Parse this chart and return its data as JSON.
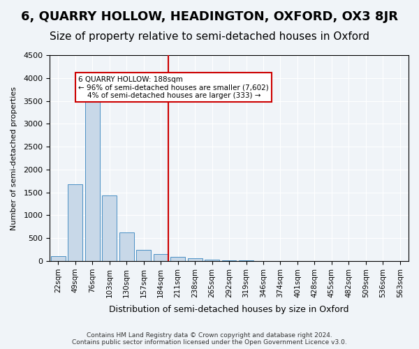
{
  "title1": "6, QUARRY HOLLOW, HEADINGTON, OXFORD, OX3 8JR",
  "title2": "Size of property relative to semi-detached houses in Oxford",
  "xlabel": "Distribution of semi-detached houses by size in Oxford",
  "ylabel": "Number of semi-detached properties",
  "categories": [
    "22sqm",
    "49sqm",
    "76sqm",
    "103sqm",
    "130sqm",
    "157sqm",
    "184sqm",
    "211sqm",
    "238sqm",
    "265sqm",
    "292sqm",
    "319sqm",
    "346sqm",
    "374sqm",
    "401sqm",
    "428sqm",
    "455sqm",
    "482sqm",
    "509sqm",
    "536sqm",
    "563sqm"
  ],
  "bar_heights": [
    100,
    1680,
    3480,
    1430,
    620,
    240,
    150,
    90,
    55,
    30,
    20,
    10,
    5,
    3,
    2,
    2,
    1,
    1,
    0,
    0,
    0
  ],
  "bar_color": "#c8d8e8",
  "bar_edge_color": "#4a90c4",
  "vline_x": 6,
  "vline_color": "#cc0000",
  "annotation_text": "6 QUARRY HOLLOW: 188sqm\n← 96% of semi-detached houses are smaller (7,602)\n    4% of semi-detached houses are larger (333) →",
  "annotation_box_color": "#cc0000",
  "ylim": [
    0,
    4500
  ],
  "yticks": [
    0,
    500,
    1000,
    1500,
    2000,
    2500,
    3000,
    3500,
    4000,
    4500
  ],
  "footer": "Contains HM Land Registry data © Crown copyright and database right 2024.\nContains public sector information licensed under the Open Government Licence v3.0.",
  "bg_color": "#f0f4f8",
  "grid_color": "#ffffff",
  "title1_fontsize": 13,
  "title2_fontsize": 11
}
